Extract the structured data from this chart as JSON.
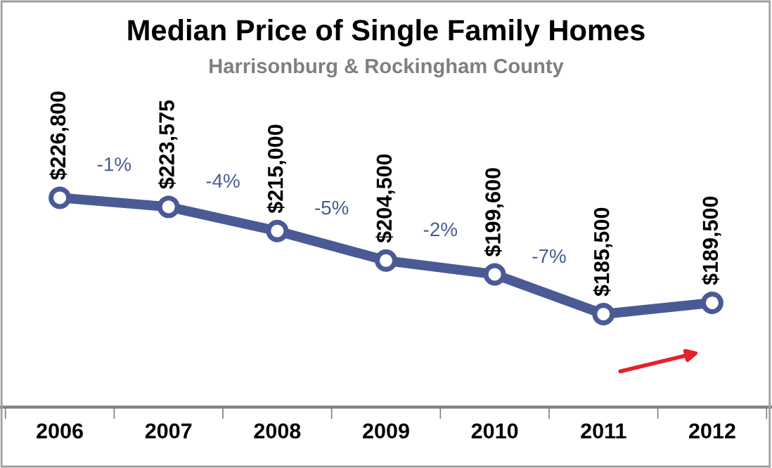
{
  "chart_data": {
    "type": "line",
    "title": "Median Price of Single Family Homes",
    "subtitle": "Harrisonburg & Rockingham County",
    "categories": [
      "2006",
      "2007",
      "2008",
      "2009",
      "2010",
      "2011",
      "2012"
    ],
    "series": [
      {
        "color": "#4a5a95",
        "values": [
          226800,
          223575,
          215000,
          204500,
          199600,
          185500,
          189500
        ],
        "value_labels": [
          "$226,800",
          "$223,575",
          "$215,000",
          "$204,500",
          "$199,600",
          "$185,500",
          "$189,500"
        ]
      }
    ],
    "annotations": [
      "-1%",
      "-4%",
      "-5%",
      "-2%",
      "-7%"
    ],
    "marker": "circle",
    "line_style": "solid",
    "grid": false,
    "legend": false
  }
}
